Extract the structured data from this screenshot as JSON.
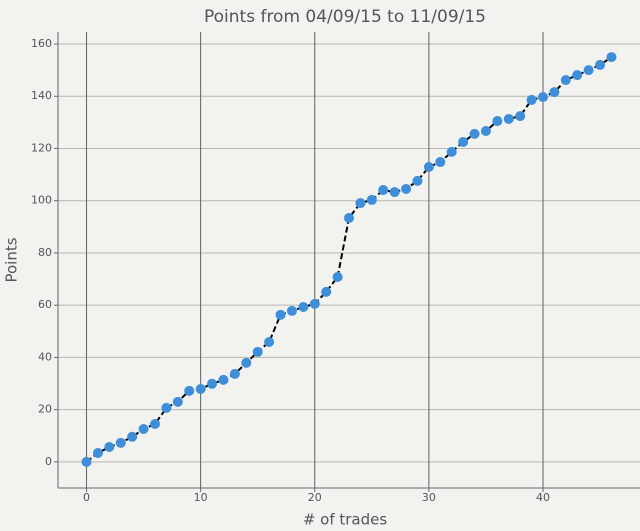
{
  "chart_data": {
    "type": "line",
    "title": "Points from 04/09/15 to 11/09/15",
    "x_label": "# of trades",
    "y_label": "Points",
    "x": [
      0,
      1,
      2,
      3,
      4,
      5,
      6,
      7,
      8,
      9,
      10,
      11,
      12,
      13,
      14,
      15,
      16,
      17,
      18,
      19,
      20,
      21,
      22,
      23,
      24,
      25,
      26,
      27,
      28,
      29,
      30,
      31,
      32,
      33,
      34,
      35,
      36,
      37,
      38,
      39,
      40,
      41,
      42,
      43,
      44,
      45,
      46
    ],
    "series": [
      {
        "name": "Points",
        "color": "#3d8fdb",
        "values": [
          0,
          3.4,
          5.7,
          7.3,
          9.6,
          12.6,
          14.5,
          20.7,
          23,
          27.2,
          27.9,
          29.9,
          31.4,
          33.7,
          37.9,
          42.1,
          45.9,
          56.3,
          57.8,
          59.3,
          60.5,
          65.1,
          70.8,
          93.4,
          99.1,
          100.3,
          104.1,
          103.3,
          104.5,
          107.6,
          112.9,
          114.8,
          118.7,
          122.5,
          125.6,
          126.7,
          130.5,
          131.3,
          132.4,
          138.6,
          139.7,
          141.6,
          146.2,
          148.1,
          150,
          152,
          155
        ]
      }
    ],
    "xlim": [
      -2.5,
      48.5
    ],
    "ylim": [
      -10,
      164.6
    ],
    "xticks": [
      0,
      10,
      20,
      30,
      40
    ],
    "yticks": [
      0,
      20,
      40,
      60,
      80,
      100,
      120,
      140,
      160
    ],
    "grid": true
  }
}
